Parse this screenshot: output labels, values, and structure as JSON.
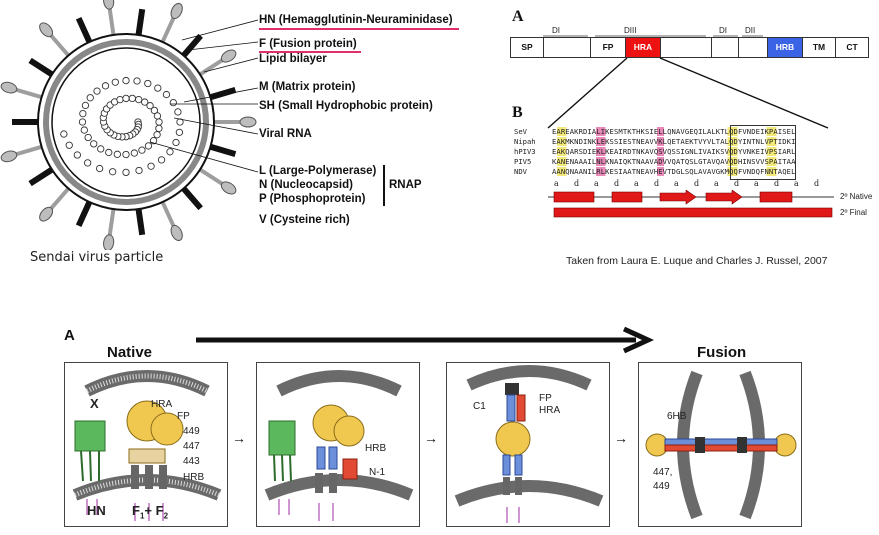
{
  "virus": {
    "caption": "Sendai virus particle",
    "labels": {
      "hn": "HN (Hemagglutinin-Neuraminidase)",
      "f": "F (Fusion protein)",
      "lipid": "Lipid bilayer",
      "m": "M (Matrix protein)",
      "sh": "SH (Small Hydrophobic protein)",
      "rna": "Viral RNA",
      "l": "L (Large-Polymerase)",
      "n": "N (Nucleocapsid)",
      "p": "P (Phosphoprotein)",
      "rnap": "RNAP",
      "v": "V (Cysteine rich)"
    },
    "colors": {
      "underline": "#e0306a",
      "grey": "#9e9e9e",
      "black": "#111111"
    }
  },
  "fusion_protein": {
    "panel_a": "A",
    "panel_b": "B",
    "domains": [
      "SP",
      "FP",
      "HRA",
      "TM",
      "HRB",
      "CT"
    ],
    "region_labels": [
      "DI",
      "DIII",
      "DI",
      "DII"
    ],
    "sequences": [
      {
        "name": "SeV",
        "seq": "EAREAKRDIALIKESMTKTHKSIELLQNAVGEQILALKTLQDFVNDEIKPAISEL"
      },
      {
        "name": "Nipah",
        "seq": "EAKMKNDINKLEKSSIESTNEAVVKLQETAEKTVYVLTALQDYINTNLVPTIDKI"
      },
      {
        "name": "hPIV3",
        "seq": "EAKQARSDIEKLKEAIRDTNKAVQSVQSSIGNLIVAIKSVQDYVNKEIVPSIARL"
      },
      {
        "name": "PIV5",
        "seq": "KANENAAAILNLKNAIQKTNAAVADVVQATQSLGTAVQAVQDHINSVVSPAITAA"
      },
      {
        "name": "NDV",
        "seq": "AANQNAANILRLKESIAATNEAVHEVTDGLSQLAVAVGKMQQFVNDQFNNTAQEL"
      }
    ],
    "heptad": [
      "a",
      "d",
      "a",
      "d",
      "a",
      "d",
      "a",
      "d",
      "a",
      "d",
      "a",
      "d",
      "a",
      "d"
    ],
    "structure": {
      "native": "2º Native",
      "final": "2º Final"
    },
    "citation": "Taken from Laura E. Luque and Charles J. Russel, 2007",
    "colors": {
      "hra": "#ee1111",
      "hrb": "#3a63e6",
      "hydrophobic": "#f3e97a",
      "charged": "#e889b8",
      "helix": "#e01818"
    }
  },
  "mechanism": {
    "panel": "A",
    "native_title": "Native",
    "fusion_title": "Fusion",
    "labels": {
      "x": "X",
      "hra": "HRA",
      "fp": "FP",
      "n449": "449",
      "n447": "447",
      "n443": "443",
      "hrb": "HRB",
      "hn": "HN",
      "f1f2": "F",
      "f1": "1",
      "plus": "+ F",
      "f2": "2",
      "hrb2": "HRB",
      "n1": "N-1",
      "c1": "C1",
      "fp3": "FP",
      "hra3": "HRA",
      "sixhb": "6HB",
      "n447b": "447,",
      "n449b": "449"
    },
    "colors": {
      "hn": "#5cb85c",
      "head": "#f0c850",
      "stalk": "#6b8fd9",
      "hrb": "#e24a33",
      "membrane": "#777777"
    }
  }
}
